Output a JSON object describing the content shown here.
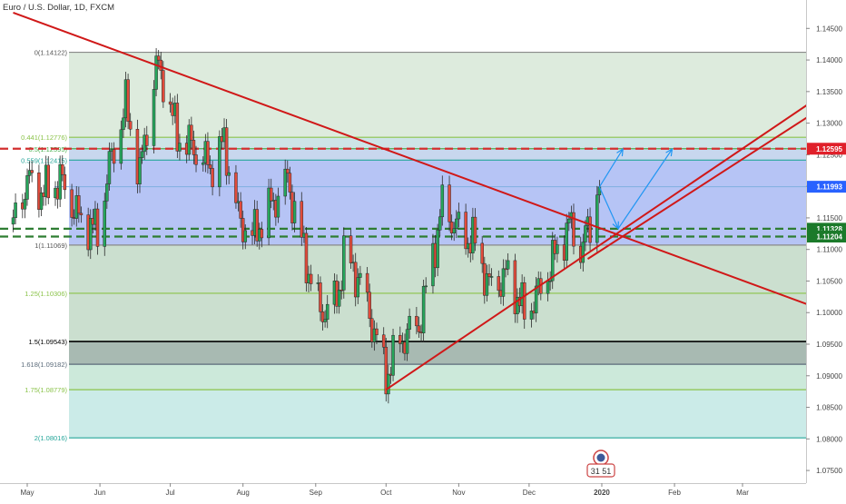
{
  "header": {
    "title": "Euro / U.S. Dollar, 1D, FXCM"
  },
  "price_axis": {
    "ticks": [
      "1.14500",
      "1.14000",
      "1.13500",
      "1.13000",
      "1.12500",
      "1.12000",
      "1.11500",
      "1.11000",
      "1.10500",
      "1.10000",
      "1.09500",
      "1.09000",
      "1.08500",
      "1.08000",
      "1.07500"
    ],
    "badges": [
      {
        "label": "1.12595",
        "value": 1.12595,
        "color": "#e0202a"
      },
      {
        "label": "1.11993",
        "value": 1.11993,
        "color": "#2962ff"
      },
      {
        "label": "1.11328",
        "value": 1.11328,
        "color": "#1b7a2a"
      },
      {
        "label": "1.11204",
        "value": 1.11204,
        "color": "#1b7a2a"
      }
    ]
  },
  "time_axis": [
    "May",
    "Jun",
    "Jul",
    "Aug",
    "Sep",
    "Oct",
    "Nov",
    "Dec",
    "2020",
    "Feb",
    "Mar"
  ],
  "logo_text": "31 51",
  "chart_data": {
    "type": "candlestick",
    "title": "Euro / U.S. Dollar, 1D, FXCM",
    "ylim": [
      1.073,
      1.1495
    ],
    "fib_levels": [
      {
        "label": "0(1.14122)",
        "ratio": 0,
        "price": 1.14122,
        "color": "#8a8a8a"
      },
      {
        "label": "0.441(1.12776)",
        "ratio": 0.441,
        "price": 1.12776,
        "color": "#8bc34a"
      },
      {
        "label": "0.5(1.12595)",
        "ratio": 0.5,
        "price": 1.12595,
        "color": "#4caf50"
      },
      {
        "label": "0.559(1.12415)",
        "ratio": 0.559,
        "price": 1.12415,
        "color": "#26a69a"
      },
      {
        "label": "1(1.11069)",
        "ratio": 1,
        "price": 1.11069,
        "color": "#8a8a8a"
      },
      {
        "label": "1.25(1.10306)",
        "ratio": 1.25,
        "price": 1.10306,
        "color": "#8bc34a"
      },
      {
        "label": "1.5(1.09543)",
        "ratio": 1.5,
        "price": 1.09543,
        "color": "#000000"
      },
      {
        "label": "1.618(1.09182)",
        "ratio": 1.618,
        "price": 1.09182,
        "color": "#5b6b7a"
      },
      {
        "label": "1.75(1.08779)",
        "ratio": 1.75,
        "price": 1.08779,
        "color": "#8bc34a"
      },
      {
        "label": "2(1.08016)",
        "ratio": 2,
        "price": 1.08016,
        "color": "#26a69a"
      }
    ],
    "horizontal_lines": [
      {
        "price": 1.12595,
        "style": "dashed",
        "color": "#d32f2f"
      },
      {
        "price": 1.11993,
        "style": "thin",
        "color": "#7fb0e0"
      },
      {
        "price": 1.11328,
        "style": "dashed",
        "color": "#2e7d32"
      },
      {
        "price": 1.11204,
        "style": "dashed",
        "color": "#2e7d32"
      }
    ],
    "trend_lines": [
      {
        "from": {
          "date": "2019-04-25",
          "price": 1.1475
        },
        "to": {
          "date": "2020-03-31",
          "price": 1.101
        }
      },
      {
        "from": {
          "date": "2019-10-01",
          "price": 1.0878
        },
        "to": {
          "date": "2020-03-31",
          "price": 1.1335
        }
      },
      {
        "from": {
          "date": "2019-12-26",
          "price": 1.1085
        },
        "to": {
          "date": "2020-03-31",
          "price": 1.1315
        }
      }
    ],
    "projection_arrows": [
      {
        "from": {
          "date": "2019-12-31",
          "price": 1.1199
        },
        "to": {
          "date": "2020-01-10",
          "price": 1.1259
        }
      },
      {
        "from": {
          "date": "2019-12-31",
          "price": 1.1199
        },
        "to": {
          "date": "2020-01-08",
          "price": 1.1133
        }
      },
      {
        "from": {
          "date": "2020-01-08",
          "price": 1.1133
        },
        "to": {
          "date": "2020-01-31",
          "price": 1.1259
        }
      }
    ],
    "price_path": [
      [
        "2019-04-25",
        1.114
      ],
      [
        "2019-05-01",
        1.121
      ],
      [
        "2019-05-08",
        1.119
      ],
      [
        "2019-05-15",
        1.121
      ],
      [
        "2019-05-23",
        1.115
      ],
      [
        "2019-05-31",
        1.113
      ],
      [
        "2019-06-05",
        1.123
      ],
      [
        "2019-06-12",
        1.133
      ],
      [
        "2019-06-18",
        1.122
      ],
      [
        "2019-06-25",
        1.139
      ],
      [
        "2019-06-28",
        1.137
      ],
      [
        "2019-07-04",
        1.128
      ],
      [
        "2019-07-11",
        1.126
      ],
      [
        "2019-07-18",
        1.123
      ],
      [
        "2019-07-24",
        1.127
      ],
      [
        "2019-07-30",
        1.115
      ],
      [
        "2019-08-05",
        1.112
      ],
      [
        "2019-08-13",
        1.117
      ],
      [
        "2019-08-20",
        1.121
      ],
      [
        "2019-08-28",
        1.108
      ],
      [
        "2019-09-03",
        1.1
      ],
      [
        "2019-09-10",
        1.102
      ],
      [
        "2019-09-13",
        1.109
      ],
      [
        "2019-09-20",
        1.105
      ],
      [
        "2019-09-26",
        1.097
      ],
      [
        "2019-10-01",
        1.09
      ],
      [
        "2019-10-08",
        1.096
      ],
      [
        "2019-10-15",
        1.098
      ],
      [
        "2019-10-21",
        1.109
      ],
      [
        "2019-10-25",
        1.117
      ],
      [
        "2019-11-01",
        1.113
      ],
      [
        "2019-11-08",
        1.111
      ],
      [
        "2019-11-14",
        1.104
      ],
      [
        "2019-11-22",
        1.106
      ],
      [
        "2019-11-29",
        1.1
      ],
      [
        "2019-12-05",
        1.103
      ],
      [
        "2019-12-12",
        1.109
      ],
      [
        "2019-12-18",
        1.114
      ],
      [
        "2019-12-23",
        1.11
      ],
      [
        "2019-12-27",
        1.114
      ],
      [
        "2019-12-31",
        1.121
      ]
    ]
  }
}
